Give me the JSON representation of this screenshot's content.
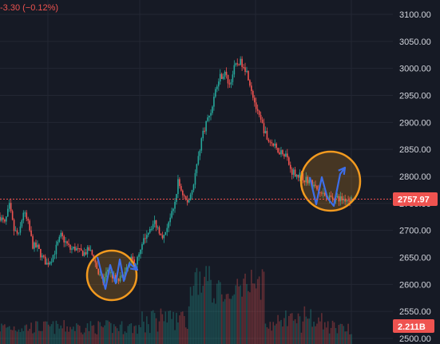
{
  "header": {
    "change_text": "-3.30 (−0.12%)"
  },
  "colors": {
    "background": "#161a25",
    "grid": "#232733",
    "up": "#26a69a",
    "down": "#ef5350",
    "annotation_circle": "#f29a1f",
    "annotation_arrow": "#3d6ee8",
    "axis_text": "#d1d4dc"
  },
  "chart_data": {
    "type": "candlestick",
    "ylim": [
      2500,
      3120
    ],
    "y_ticks": [
      "3100.00",
      "3050.00",
      "3000.00",
      "2950.00",
      "2900.00",
      "2850.00",
      "2800.00",
      "2750.00",
      "2700.00",
      "2650.00",
      "2600.00",
      "2550.00",
      "2500.00"
    ],
    "last_price": "2757.97",
    "volume_label": "2.211B",
    "price_path": [
      [
        0,
        2725
      ],
      [
        6,
        2712
      ],
      [
        12,
        2745
      ],
      [
        18,
        2700
      ],
      [
        24,
        2690
      ],
      [
        30,
        2735
      ],
      [
        36,
        2712
      ],
      [
        42,
        2672
      ],
      [
        48,
        2668
      ],
      [
        54,
        2650
      ],
      [
        60,
        2638
      ],
      [
        66,
        2648
      ],
      [
        72,
        2668
      ],
      [
        78,
        2690
      ],
      [
        84,
        2678
      ],
      [
        90,
        2665
      ],
      [
        96,
        2667
      ],
      [
        102,
        2660
      ],
      [
        108,
        2658
      ],
      [
        114,
        2664
      ],
      [
        120,
        2650
      ],
      [
        126,
        2620
      ],
      [
        132,
        2605
      ],
      [
        138,
        2628
      ],
      [
        144,
        2615
      ],
      [
        150,
        2605
      ],
      [
        156,
        2612
      ],
      [
        162,
        2625
      ],
      [
        168,
        2645
      ],
      [
        174,
        2640
      ],
      [
        180,
        2660
      ],
      [
        186,
        2690
      ],
      [
        192,
        2705
      ],
      [
        198,
        2715
      ],
      [
        204,
        2700
      ],
      [
        210,
        2688
      ],
      [
        216,
        2718
      ],
      [
        222,
        2735
      ],
      [
        228,
        2790
      ],
      [
        234,
        2768
      ],
      [
        240,
        2750
      ],
      [
        246,
        2775
      ],
      [
        252,
        2820
      ],
      [
        258,
        2870
      ],
      [
        264,
        2900
      ],
      [
        270,
        2920
      ],
      [
        276,
        2960
      ],
      [
        282,
        2985
      ],
      [
        288,
        2990
      ],
      [
        294,
        2970
      ],
      [
        300,
        3000
      ],
      [
        306,
        3012
      ],
      [
        312,
        3008
      ],
      [
        318,
        2985
      ],
      [
        324,
        2950
      ],
      [
        330,
        2915
      ],
      [
        336,
        2895
      ],
      [
        342,
        2870
      ],
      [
        348,
        2862
      ],
      [
        354,
        2850
      ],
      [
        360,
        2846
      ],
      [
        366,
        2842
      ],
      [
        372,
        2812
      ],
      [
        378,
        2806
      ],
      [
        384,
        2802
      ],
      [
        390,
        2796
      ],
      [
        396,
        2792
      ],
      [
        402,
        2782
      ],
      [
        408,
        2770
      ],
      [
        414,
        2765
      ],
      [
        420,
        2762
      ],
      [
        426,
        2760
      ],
      [
        432,
        2760
      ],
      [
        438,
        2758
      ],
      [
        444,
        2758
      ],
      [
        450,
        2758
      ]
    ]
  },
  "annotations": [
    {
      "name": "annotation-circle-left",
      "center": [
        2620,
        140
      ],
      "arrow_zigzag": [
        [
          2635,
          122
        ],
        [
          2590,
          130
        ],
        [
          2640,
          138
        ],
        [
          2610,
          146
        ],
        [
          2645,
          154
        ],
        [
          2600,
          162
        ],
        [
          2650,
          170
        ]
      ]
    },
    {
      "name": "annotation-circle-right",
      "center": [
        2790,
        414
      ],
      "arrow_zigzag": [
        [
          2810,
          388
        ],
        [
          2765,
          396
        ],
        [
          2815,
          404
        ],
        [
          2770,
          410
        ],
        [
          2780,
          418
        ],
        [
          2825,
          432
        ]
      ]
    }
  ]
}
